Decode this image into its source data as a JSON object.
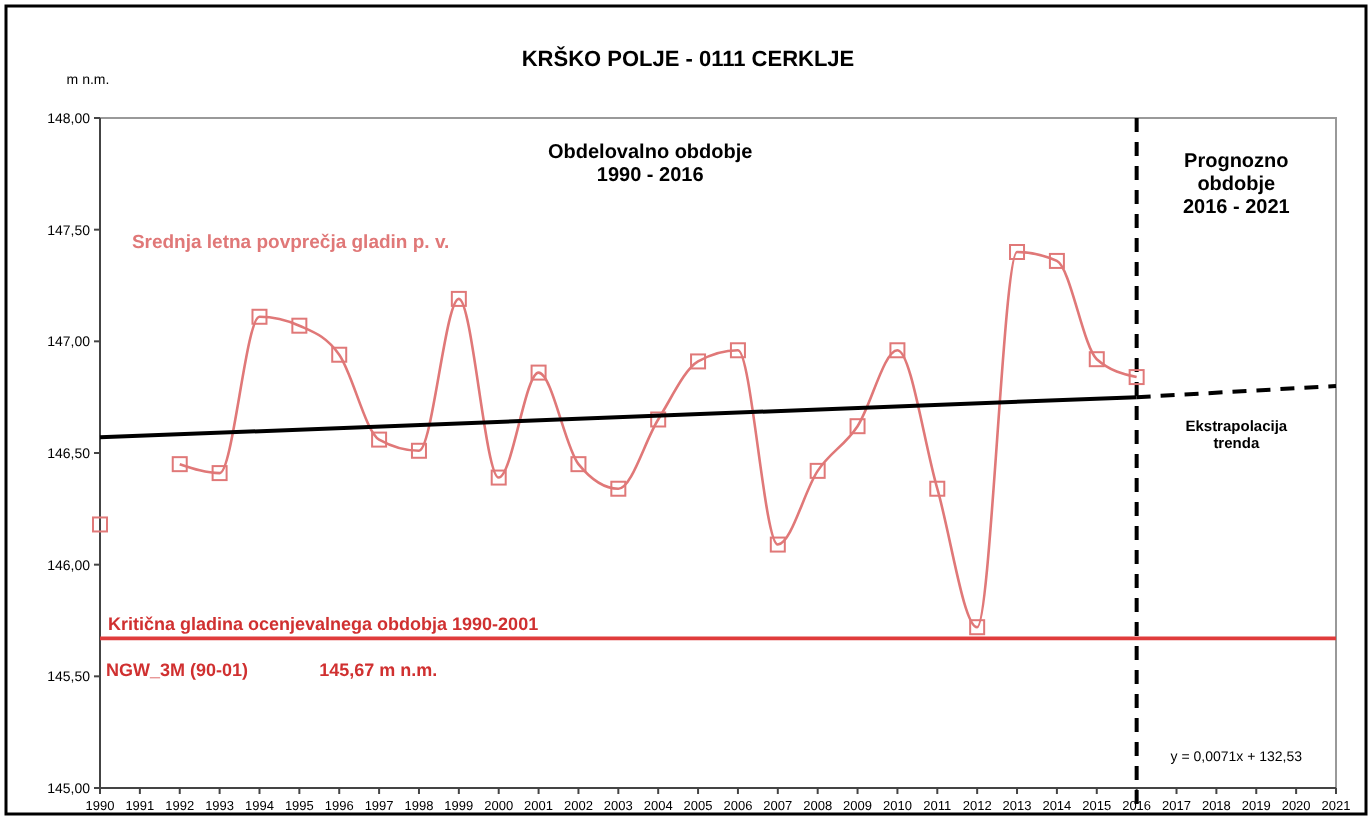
{
  "chart_data": {
    "type": "line",
    "title": "KRŠKO POLJE - 0111 CERKLJE",
    "ylabel": "m n.m.",
    "x": [
      1990,
      1991,
      1992,
      1993,
      1994,
      1995,
      1996,
      1997,
      1998,
      1999,
      2000,
      2001,
      2002,
      2003,
      2004,
      2005,
      2006,
      2007,
      2008,
      2009,
      2010,
      2011,
      2012,
      2013,
      2014,
      2015,
      2016
    ],
    "series": [
      {
        "name": "Srednja letna povprečja gladin p. v.",
        "color": "#e07878",
        "marker": "square",
        "values": [
          146.18,
          null,
          146.45,
          146.41,
          147.11,
          147.07,
          146.94,
          146.56,
          146.51,
          147.19,
          146.39,
          146.86,
          146.45,
          146.34,
          146.65,
          146.91,
          146.96,
          146.09,
          146.42,
          146.62,
          146.96,
          146.34,
          145.72,
          147.4,
          147.36,
          146.92,
          146.84
        ]
      },
      {
        "color": "#000000",
        "marker": "none",
        "line_style": "solid",
        "x": [
          1990,
          2016
        ],
        "values": [
          146.57,
          146.75
        ]
      },
      {
        "color": "#000000",
        "marker": "none",
        "line_style": "dashed",
        "x": [
          2016,
          2021
        ],
        "values": [
          146.75,
          146.8
        ]
      }
    ],
    "xlim": [
      1990,
      2021
    ],
    "xticks": [
      1990,
      1991,
      1992,
      1993,
      1994,
      1995,
      1996,
      1997,
      1998,
      1999,
      2000,
      2001,
      2002,
      2003,
      2004,
      2005,
      2006,
      2007,
      2008,
      2009,
      2010,
      2011,
      2012,
      2013,
      2014,
      2015,
      2016,
      2017,
      2018,
      2019,
      2020,
      2021
    ],
    "ylim": [
      145,
      148
    ],
    "yticks": [
      {
        "value": 145,
        "label": "145,00"
      },
      {
        "value": 145.5,
        "label": "145,50"
      },
      {
        "value": 146,
        "label": "146,00"
      },
      {
        "value": 146.5,
        "label": "146,50"
      },
      {
        "value": 147,
        "label": "147,00"
      },
      {
        "value": 147.5,
        "label": "147,50"
      },
      {
        "value": 148,
        "label": "148,00"
      }
    ],
    "ref_lines": [
      {
        "axis": "y",
        "value": 145.67,
        "label": "Kritična gladina ocenjevalnega obdobja 1990-2001",
        "color": "#e03c3c",
        "line_style": "solid"
      },
      {
        "axis": "x",
        "value": 2016,
        "color": "#000000",
        "line_style": "dashed"
      }
    ],
    "annotations": [
      "NGW_3M (90-01)",
      "145,67 m n.m.",
      "Obdelovalno obdobje\n1990 - 2016",
      "Prognozno\nobdobje\n2016 - 2021",
      "Ekstrapolacija\ntrenda",
      "y = 0,0071x + 132,53"
    ],
    "grid": false
  }
}
